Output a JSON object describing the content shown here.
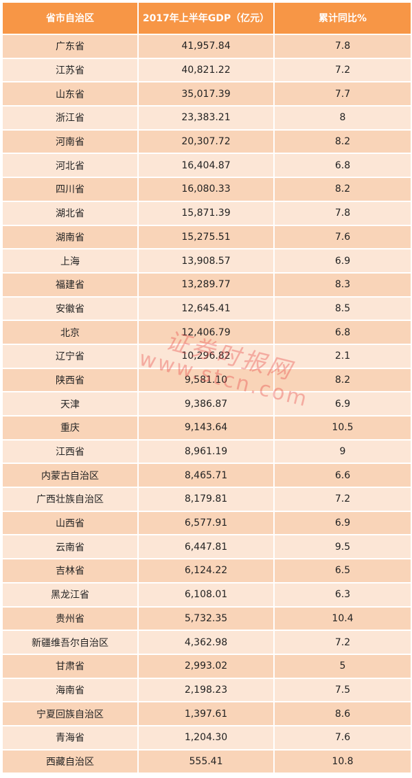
{
  "header": {
    "region": "省市自治区",
    "gdp": "2017年上半年GDP（亿元）",
    "growth": "累计同比%"
  },
  "colors": {
    "header": "#F79646",
    "row_dark": "#F9D4B8",
    "row_light": "#FCE6D6",
    "watermark": "#E63C3C"
  },
  "watermark": {
    "cn": "证券时报网",
    "en": "www.stcn.com"
  },
  "rows": [
    {
      "region": "广东省",
      "gdp": "41,957.84",
      "growth": "7.8"
    },
    {
      "region": "江苏省",
      "gdp": "40,821.22",
      "growth": "7.2"
    },
    {
      "region": "山东省",
      "gdp": "35,017.39",
      "growth": "7.7"
    },
    {
      "region": "浙江省",
      "gdp": "23,383.21",
      "growth": "8"
    },
    {
      "region": "河南省",
      "gdp": "20,307.72",
      "growth": "8.2"
    },
    {
      "region": "河北省",
      "gdp": "16,404.87",
      "growth": "6.8"
    },
    {
      "region": "四川省",
      "gdp": "16,080.33",
      "growth": "8.2"
    },
    {
      "region": "湖北省",
      "gdp": "15,871.39",
      "growth": "7.8"
    },
    {
      "region": "湖南省",
      "gdp": "15,275.51",
      "growth": "7.6"
    },
    {
      "region": "上海",
      "gdp": "13,908.57",
      "growth": "6.9"
    },
    {
      "region": "福建省",
      "gdp": "13,289.77",
      "growth": "8.3"
    },
    {
      "region": "安徽省",
      "gdp": "12,645.41",
      "growth": "8.5"
    },
    {
      "region": "北京",
      "gdp": "12,406.79",
      "growth": "6.8"
    },
    {
      "region": "辽宁省",
      "gdp": "10,296.82",
      "growth": "2.1"
    },
    {
      "region": "陕西省",
      "gdp": "9,581.10",
      "growth": "8.2"
    },
    {
      "region": "天津",
      "gdp": "9,386.87",
      "growth": "6.9"
    },
    {
      "region": "重庆",
      "gdp": "9,143.64",
      "growth": "10.5"
    },
    {
      "region": "江西省",
      "gdp": "8,961.19",
      "growth": "9"
    },
    {
      "region": "内蒙古自治区",
      "gdp": "8,465.71",
      "growth": "6.6"
    },
    {
      "region": "广西壮族自治区",
      "gdp": "8,179.81",
      "growth": "7.2"
    },
    {
      "region": "山西省",
      "gdp": "6,577.91",
      "growth": "6.9"
    },
    {
      "region": "云南省",
      "gdp": "6,447.81",
      "growth": "9.5"
    },
    {
      "region": "吉林省",
      "gdp": "6,124.22",
      "growth": "6.5"
    },
    {
      "region": "黑龙江省",
      "gdp": "6,108.01",
      "growth": "6.3"
    },
    {
      "region": "贵州省",
      "gdp": "5,732.35",
      "growth": "10.4"
    },
    {
      "region": "新疆维吾尔自治区",
      "gdp": "4,362.98",
      "growth": "7.2"
    },
    {
      "region": "甘肃省",
      "gdp": "2,993.02",
      "growth": "5"
    },
    {
      "region": "海南省",
      "gdp": "2,198.23",
      "growth": "7.5"
    },
    {
      "region": "宁夏回族自治区",
      "gdp": "1,397.61",
      "growth": "8.6"
    },
    {
      "region": "青海省",
      "gdp": "1,204.30",
      "growth": "7.6"
    },
    {
      "region": "西藏自治区",
      "gdp": "555.41",
      "growth": "10.8"
    }
  ]
}
